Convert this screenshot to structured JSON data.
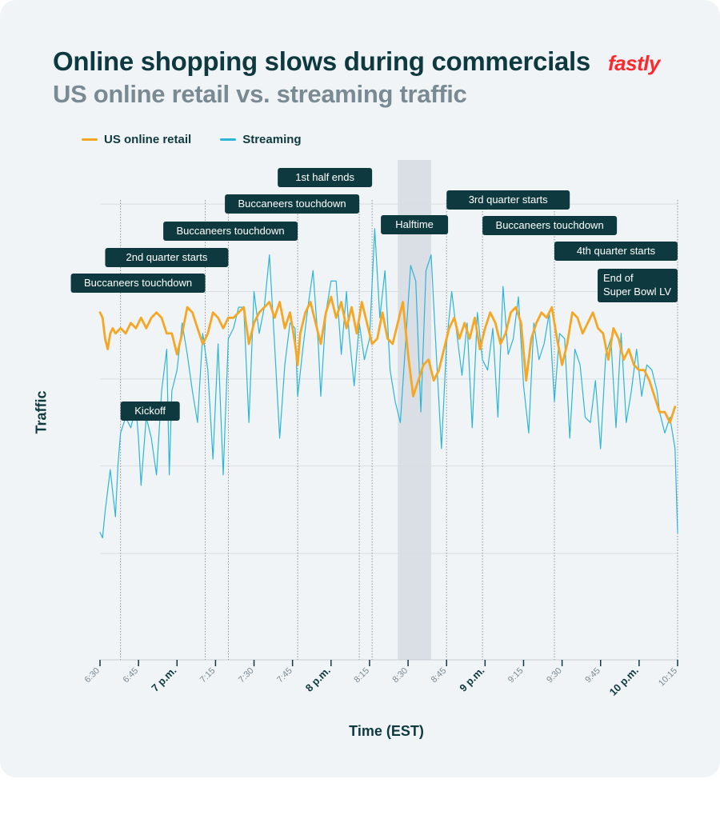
{
  "header": {
    "title": "Online shopping slows during commercials",
    "subtitle": "US online retail vs. streaming traffic",
    "logo_text": "fastly"
  },
  "colors": {
    "retail": "#f5a623",
    "streaming": "#2cb5d6",
    "annotation_bg": "#0e3a3f",
    "halftime_band": "#d5dbe0",
    "logo": "#ff282d"
  },
  "chart_data": {
    "type": "line",
    "title": "Online shopping slows during commercials",
    "subtitle": "US online retail vs. streaming traffic",
    "xlabel": "Time (EST)",
    "ylabel": "Traffic",
    "y_scale": "relative traffic (unlabeled, 0-100 scale)",
    "grid": true,
    "legend_position": "top-left",
    "xlim": [
      "6:30",
      "10:15"
    ],
    "ylim": [
      0,
      100
    ],
    "x_ticks": [
      {
        "label": "6:30",
        "minute": 0,
        "bold": false
      },
      {
        "label": "6:45",
        "minute": 15,
        "bold": false
      },
      {
        "label": "7 p.m.",
        "minute": 30,
        "bold": true
      },
      {
        "label": "7:15",
        "minute": 45,
        "bold": false
      },
      {
        "label": "7:30",
        "minute": 60,
        "bold": false
      },
      {
        "label": "7:45",
        "minute": 75,
        "bold": false
      },
      {
        "label": "8 p.m.",
        "minute": 90,
        "bold": true
      },
      {
        "label": "8:15",
        "minute": 105,
        "bold": false
      },
      {
        "label": "8:30",
        "minute": 120,
        "bold": false
      },
      {
        "label": "8:45",
        "minute": 135,
        "bold": false
      },
      {
        "label": "9 p.m.",
        "minute": 150,
        "bold": true
      },
      {
        "label": "9:15",
        "minute": 165,
        "bold": false
      },
      {
        "label": "9:30",
        "minute": 180,
        "bold": false
      },
      {
        "label": "9:45",
        "minute": 195,
        "bold": false
      },
      {
        "label": "10 p.m.",
        "minute": 210,
        "bold": true
      },
      {
        "label": "10:15",
        "minute": 225,
        "bold": false
      }
    ],
    "halftime_band": {
      "label": "Halftime",
      "start_minute": 116,
      "end_minute": 129
    },
    "annotations": [
      {
        "label": "Kickoff",
        "minute": 8
      },
      {
        "label": "Buccaneers touchdown",
        "minute": 41
      },
      {
        "label": "2nd quarter starts",
        "minute": 50
      },
      {
        "label": "Buccaneers touchdown",
        "minute": 77
      },
      {
        "label": "Buccaneers touchdown",
        "minute": 101
      },
      {
        "label": "1st half ends",
        "minute": 106
      },
      {
        "label": "3rd quarter starts",
        "minute": 135
      },
      {
        "label": "Buccaneers touchdown",
        "minute": 149
      },
      {
        "label": "4th quarter starts",
        "minute": 177
      },
      {
        "label": "End of Super Bowl LV",
        "minute": 225
      }
    ],
    "series": [
      {
        "name": "US online retail",
        "points": [
          [
            0,
            66
          ],
          [
            1,
            65
          ],
          [
            2,
            61
          ],
          [
            3,
            59
          ],
          [
            4,
            62
          ],
          [
            5,
            63
          ],
          [
            6,
            62
          ],
          [
            8,
            63
          ],
          [
            10,
            62
          ],
          [
            12,
            64
          ],
          [
            14,
            63
          ],
          [
            16,
            65
          ],
          [
            18,
            63
          ],
          [
            20,
            65
          ],
          [
            22,
            66
          ],
          [
            24,
            65
          ],
          [
            26,
            62
          ],
          [
            28,
            62
          ],
          [
            30,
            58
          ],
          [
            32,
            62
          ],
          [
            34,
            67
          ],
          [
            36,
            66
          ],
          [
            38,
            63
          ],
          [
            40,
            60
          ],
          [
            42,
            62
          ],
          [
            44,
            66
          ],
          [
            46,
            65
          ],
          [
            48,
            63
          ],
          [
            50,
            65
          ],
          [
            52,
            65
          ],
          [
            54,
            66
          ],
          [
            56,
            67
          ],
          [
            58,
            60
          ],
          [
            60,
            64
          ],
          [
            62,
            66
          ],
          [
            64,
            67
          ],
          [
            66,
            68
          ],
          [
            68,
            65
          ],
          [
            70,
            68
          ],
          [
            72,
            63
          ],
          [
            74,
            66
          ],
          [
            76,
            60
          ],
          [
            77,
            56
          ],
          [
            78,
            62
          ],
          [
            80,
            66
          ],
          [
            82,
            68
          ],
          [
            84,
            64
          ],
          [
            86,
            60
          ],
          [
            88,
            66
          ],
          [
            90,
            69
          ],
          [
            92,
            65
          ],
          [
            94,
            68
          ],
          [
            96,
            63
          ],
          [
            98,
            67
          ],
          [
            100,
            62
          ],
          [
            102,
            68
          ],
          [
            104,
            64
          ],
          [
            106,
            60
          ],
          [
            108,
            61
          ],
          [
            110,
            66
          ],
          [
            112,
            61
          ],
          [
            114,
            60
          ],
          [
            116,
            64
          ],
          [
            118,
            68
          ],
          [
            120,
            58
          ],
          [
            122,
            50
          ],
          [
            124,
            53
          ],
          [
            126,
            56
          ],
          [
            128,
            57
          ],
          [
            130,
            53
          ],
          [
            132,
            55
          ],
          [
            134,
            59
          ],
          [
            136,
            63
          ],
          [
            138,
            65
          ],
          [
            140,
            61
          ],
          [
            142,
            64
          ],
          [
            144,
            61
          ],
          [
            146,
            65
          ],
          [
            148,
            59
          ],
          [
            150,
            63
          ],
          [
            152,
            66
          ],
          [
            154,
            64
          ],
          [
            156,
            60
          ],
          [
            158,
            62
          ],
          [
            160,
            66
          ],
          [
            162,
            67
          ],
          [
            164,
            64
          ],
          [
            166,
            53
          ],
          [
            168,
            61
          ],
          [
            170,
            64
          ],
          [
            172,
            66
          ],
          [
            174,
            65
          ],
          [
            176,
            67
          ],
          [
            178,
            61
          ],
          [
            180,
            56
          ],
          [
            182,
            60
          ],
          [
            184,
            66
          ],
          [
            186,
            65
          ],
          [
            188,
            62
          ],
          [
            190,
            64
          ],
          [
            192,
            66
          ],
          [
            194,
            63
          ],
          [
            196,
            62
          ],
          [
            198,
            57
          ],
          [
            200,
            63
          ],
          [
            202,
            61
          ],
          [
            204,
            57
          ],
          [
            206,
            59
          ],
          [
            208,
            56
          ],
          [
            210,
            55
          ],
          [
            212,
            55
          ],
          [
            214,
            53
          ],
          [
            216,
            50
          ],
          [
            218,
            47
          ],
          [
            220,
            47
          ],
          [
            222,
            45
          ],
          [
            224,
            48
          ]
        ]
      },
      {
        "name": "Streaming",
        "points": [
          [
            0,
            24
          ],
          [
            1,
            23
          ],
          [
            2,
            28
          ],
          [
            4,
            36
          ],
          [
            6,
            27
          ],
          [
            7,
            37
          ],
          [
            8,
            43
          ],
          [
            10,
            46
          ],
          [
            12,
            44
          ],
          [
            14,
            48
          ],
          [
            15,
            42
          ],
          [
            16,
            33
          ],
          [
            18,
            46
          ],
          [
            20,
            42
          ],
          [
            22,
            35
          ],
          [
            24,
            51
          ],
          [
            26,
            59
          ],
          [
            27,
            35
          ],
          [
            28,
            51
          ],
          [
            30,
            55
          ],
          [
            32,
            64
          ],
          [
            34,
            58
          ],
          [
            36,
            51
          ],
          [
            38,
            45
          ],
          [
            40,
            62
          ],
          [
            42,
            55
          ],
          [
            44,
            38
          ],
          [
            46,
            60
          ],
          [
            48,
            35
          ],
          [
            50,
            61
          ],
          [
            52,
            63
          ],
          [
            54,
            67
          ],
          [
            56,
            67
          ],
          [
            58,
            45
          ],
          [
            60,
            70
          ],
          [
            62,
            62
          ],
          [
            64,
            67
          ],
          [
            66,
            77
          ],
          [
            68,
            60
          ],
          [
            70,
            42
          ],
          [
            72,
            56
          ],
          [
            74,
            64
          ],
          [
            76,
            63
          ],
          [
            77,
            50
          ],
          [
            79,
            59
          ],
          [
            81,
            67
          ],
          [
            83,
            74
          ],
          [
            85,
            60
          ],
          [
            86,
            50
          ],
          [
            88,
            66
          ],
          [
            90,
            72
          ],
          [
            92,
            72
          ],
          [
            94,
            58
          ],
          [
            96,
            70
          ],
          [
            97,
            62
          ],
          [
            99,
            52
          ],
          [
            101,
            64
          ],
          [
            103,
            57
          ],
          [
            105,
            61
          ],
          [
            107,
            82
          ],
          [
            109,
            65
          ],
          [
            111,
            74
          ],
          [
            113,
            55
          ],
          [
            115,
            49
          ],
          [
            117,
            45
          ],
          [
            119,
            60
          ],
          [
            121,
            75
          ],
          [
            123,
            72
          ],
          [
            125,
            47
          ],
          [
            127,
            74
          ],
          [
            129,
            77
          ],
          [
            131,
            58
          ],
          [
            133,
            40
          ],
          [
            135,
            60
          ],
          [
            137,
            70
          ],
          [
            139,
            62
          ],
          [
            141,
            54
          ],
          [
            143,
            64
          ],
          [
            145,
            44
          ],
          [
            147,
            66
          ],
          [
            149,
            57
          ],
          [
            151,
            55
          ],
          [
            153,
            63
          ],
          [
            155,
            46
          ],
          [
            157,
            71
          ],
          [
            159,
            58
          ],
          [
            161,
            61
          ],
          [
            163,
            69
          ],
          [
            165,
            52
          ],
          [
            167,
            43
          ],
          [
            169,
            64
          ],
          [
            171,
            57
          ],
          [
            173,
            60
          ],
          [
            175,
            66
          ],
          [
            177,
            49
          ],
          [
            179,
            62
          ],
          [
            181,
            61
          ],
          [
            183,
            42
          ],
          [
            185,
            59
          ],
          [
            187,
            56
          ],
          [
            189,
            46
          ],
          [
            191,
            45
          ],
          [
            193,
            53
          ],
          [
            195,
            40
          ],
          [
            197,
            58
          ],
          [
            199,
            61
          ],
          [
            201,
            44
          ],
          [
            203,
            62
          ],
          [
            205,
            45
          ],
          [
            207,
            51
          ],
          [
            209,
            59
          ],
          [
            211,
            50
          ],
          [
            213,
            56
          ],
          [
            215,
            55
          ],
          [
            217,
            51
          ],
          [
            218,
            47
          ],
          [
            220,
            43
          ],
          [
            222,
            46
          ],
          [
            224,
            40
          ],
          [
            225,
            24
          ]
        ]
      }
    ]
  }
}
